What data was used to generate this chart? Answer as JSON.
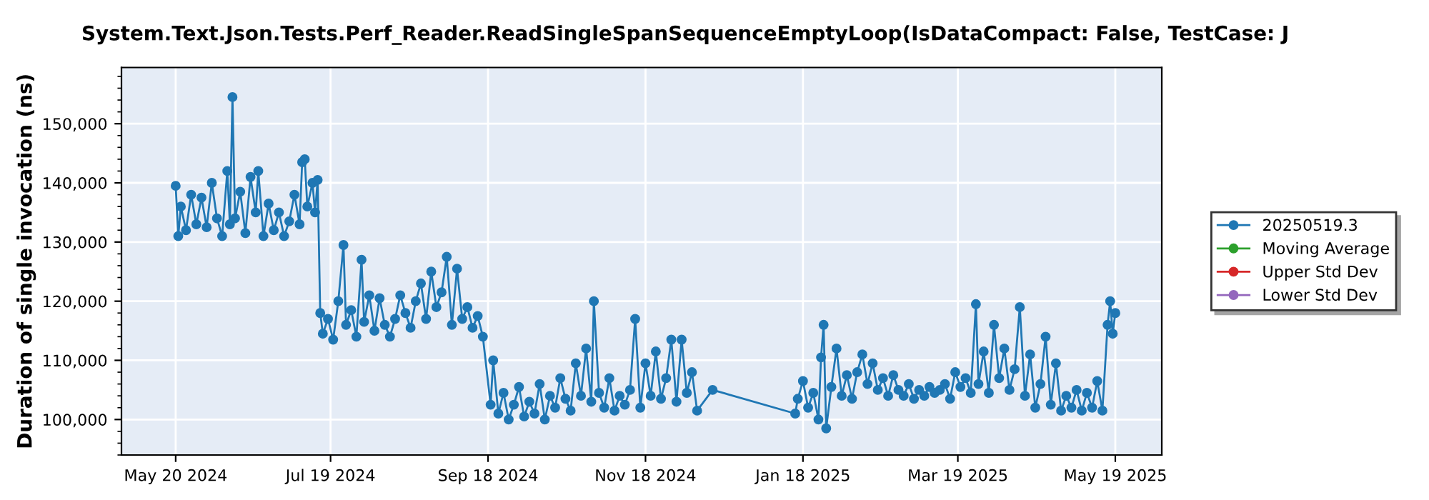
{
  "chart_data": {
    "type": "line",
    "title": "System.Text.Json.Tests.Perf_Reader.ReadSingleSpanSequenceEmptyLoop(IsDataCompact: False, TestCase: J",
    "ylabel": "Duration of single invocation (ns)",
    "xlim": [
      "2024-04-29",
      "2025-06-06"
    ],
    "xticks": [
      {
        "value": "2024-05-20",
        "label": "May 20 2024"
      },
      {
        "value": "2024-07-19",
        "label": "Jul 19 2024"
      },
      {
        "value": "2024-09-18",
        "label": "Sep 18 2024"
      },
      {
        "value": "2024-11-18",
        "label": "Nov 18 2024"
      },
      {
        "value": "2025-01-18",
        "label": "Jan 18 2025"
      },
      {
        "value": "2025-03-19",
        "label": "Mar 19 2025"
      },
      {
        "value": "2025-05-19",
        "label": "May 19 2025"
      }
    ],
    "ylim": [
      94000,
      159500
    ],
    "yticks": [
      {
        "value": 100000,
        "label": "100,000"
      },
      {
        "value": 110000,
        "label": "110,000"
      },
      {
        "value": 120000,
        "label": "120,000"
      },
      {
        "value": 130000,
        "label": "130,000"
      },
      {
        "value": 140000,
        "label": "140,000"
      },
      {
        "value": 150000,
        "label": "150,000"
      }
    ],
    "grid": true,
    "legend": "right",
    "marker": "circle",
    "line_style": "solid",
    "series": [
      {
        "name": "20250519.3",
        "color": "#1f77b4",
        "x": [
          "2024-05-20",
          "2024-05-21",
          "2024-05-22",
          "2024-05-24",
          "2024-05-26",
          "2024-05-28",
          "2024-05-30",
          "2024-06-01",
          "2024-06-03",
          "2024-06-05",
          "2024-06-07",
          "2024-06-09",
          "2024-06-10",
          "2024-06-11",
          "2024-06-12",
          "2024-06-14",
          "2024-06-16",
          "2024-06-18",
          "2024-06-20",
          "2024-06-21",
          "2024-06-23",
          "2024-06-25",
          "2024-06-27",
          "2024-06-29",
          "2024-07-01",
          "2024-07-03",
          "2024-07-05",
          "2024-07-07",
          "2024-07-08",
          "2024-07-09",
          "2024-07-10",
          "2024-07-12",
          "2024-07-13",
          "2024-07-14",
          "2024-07-15",
          "2024-07-16",
          "2024-07-18",
          "2024-07-20",
          "2024-07-22",
          "2024-07-24",
          "2024-07-25",
          "2024-07-27",
          "2024-07-29",
          "2024-07-31",
          "2024-08-01",
          "2024-08-03",
          "2024-08-05",
          "2024-08-07",
          "2024-08-09",
          "2024-08-11",
          "2024-08-13",
          "2024-08-15",
          "2024-08-17",
          "2024-08-19",
          "2024-08-21",
          "2024-08-23",
          "2024-08-25",
          "2024-08-27",
          "2024-08-29",
          "2024-08-31",
          "2024-09-02",
          "2024-09-04",
          "2024-09-06",
          "2024-09-08",
          "2024-09-10",
          "2024-09-12",
          "2024-09-14",
          "2024-09-16",
          "2024-09-19",
          "2024-09-20",
          "2024-09-22",
          "2024-09-24",
          "2024-09-26",
          "2024-09-28",
          "2024-09-30",
          "2024-10-02",
          "2024-10-04",
          "2024-10-06",
          "2024-10-08",
          "2024-10-10",
          "2024-10-12",
          "2024-10-14",
          "2024-10-16",
          "2024-10-18",
          "2024-10-20",
          "2024-10-22",
          "2024-10-24",
          "2024-10-26",
          "2024-10-28",
          "2024-10-29",
          "2024-10-31",
          "2024-11-02",
          "2024-11-04",
          "2024-11-06",
          "2024-11-08",
          "2024-11-10",
          "2024-11-12",
          "2024-11-14",
          "2024-11-16",
          "2024-11-18",
          "2024-11-20",
          "2024-11-22",
          "2024-11-24",
          "2024-11-26",
          "2024-11-28",
          "2024-11-30",
          "2024-12-02",
          "2024-12-04",
          "2024-12-06",
          "2024-12-08",
          "2024-12-14",
          "2025-01-15",
          "2025-01-16",
          "2025-01-18",
          "2025-01-20",
          "2025-01-22",
          "2025-01-24",
          "2025-01-25",
          "2025-01-26",
          "2025-01-27",
          "2025-01-29",
          "2025-01-31",
          "2025-02-02",
          "2025-02-04",
          "2025-02-06",
          "2025-02-08",
          "2025-02-10",
          "2025-02-12",
          "2025-02-14",
          "2025-02-16",
          "2025-02-18",
          "2025-02-20",
          "2025-02-22",
          "2025-02-24",
          "2025-02-26",
          "2025-02-28",
          "2025-03-02",
          "2025-03-04",
          "2025-03-06",
          "2025-03-08",
          "2025-03-10",
          "2025-03-12",
          "2025-03-14",
          "2025-03-16",
          "2025-03-18",
          "2025-03-20",
          "2025-03-22",
          "2025-03-24",
          "2025-03-26",
          "2025-03-27",
          "2025-03-29",
          "2025-03-31",
          "2025-04-02",
          "2025-04-04",
          "2025-04-06",
          "2025-04-08",
          "2025-04-10",
          "2025-04-12",
          "2025-04-14",
          "2025-04-16",
          "2025-04-18",
          "2025-04-20",
          "2025-04-22",
          "2025-04-24",
          "2025-04-26",
          "2025-04-28",
          "2025-04-30",
          "2025-05-02",
          "2025-05-04",
          "2025-05-06",
          "2025-05-08",
          "2025-05-10",
          "2025-05-12",
          "2025-05-14",
          "2025-05-16",
          "2025-05-17",
          "2025-05-18",
          "2025-05-19"
        ],
        "values": [
          139500,
          131000,
          136000,
          132000,
          138000,
          133000,
          137500,
          132500,
          140000,
          134000,
          131000,
          142000,
          133000,
          154500,
          134000,
          138500,
          131500,
          141000,
          135000,
          142000,
          131000,
          136500,
          132000,
          135000,
          131000,
          133500,
          138000,
          133000,
          143500,
          144000,
          136000,
          140000,
          135000,
          140500,
          118000,
          114500,
          117000,
          113500,
          120000,
          129500,
          116000,
          118500,
          114000,
          127000,
          116500,
          121000,
          115000,
          120500,
          116000,
          114000,
          117000,
          121000,
          118000,
          115500,
          120000,
          123000,
          117000,
          125000,
          119000,
          121500,
          127500,
          116000,
          125500,
          117000,
          119000,
          115500,
          117500,
          114000,
          102500,
          110000,
          101000,
          104500,
          100000,
          102500,
          105500,
          100500,
          103000,
          101000,
          106000,
          100000,
          104000,
          102000,
          107000,
          103500,
          101500,
          109500,
          104000,
          112000,
          103000,
          120000,
          104500,
          102000,
          107000,
          101500,
          104000,
          102500,
          105000,
          117000,
          102000,
          109500,
          104000,
          111500,
          103500,
          107000,
          113500,
          103000,
          113500,
          104500,
          108000,
          101500,
          105000,
          101000,
          103500,
          106500,
          102000,
          104500,
          100000,
          110500,
          116000,
          98500,
          105500,
          112000,
          104000,
          107500,
          103500,
          108000,
          111000,
          106000,
          109500,
          105000,
          107000,
          104000,
          107500,
          105000,
          104000,
          106000,
          103500,
          105000,
          104000,
          105500,
          104500,
          105000,
          106000,
          103500,
          108000,
          105500,
          107000,
          104500,
          119500,
          106000,
          111500,
          104500,
          116000,
          107000,
          112000,
          105000,
          108500,
          119000,
          104000,
          111000,
          102000,
          106000,
          114000,
          102500,
          109500,
          101500,
          104000,
          102000,
          105000,
          101500,
          104500,
          102000,
          106500,
          101500,
          116000,
          120000,
          114500,
          118000
        ]
      },
      {
        "name": "Moving Average",
        "color": "#2ca02c"
      },
      {
        "name": "Upper Std Dev",
        "color": "#d62728"
      },
      {
        "name": "Lower Std Dev",
        "color": "#9467bd"
      }
    ]
  }
}
